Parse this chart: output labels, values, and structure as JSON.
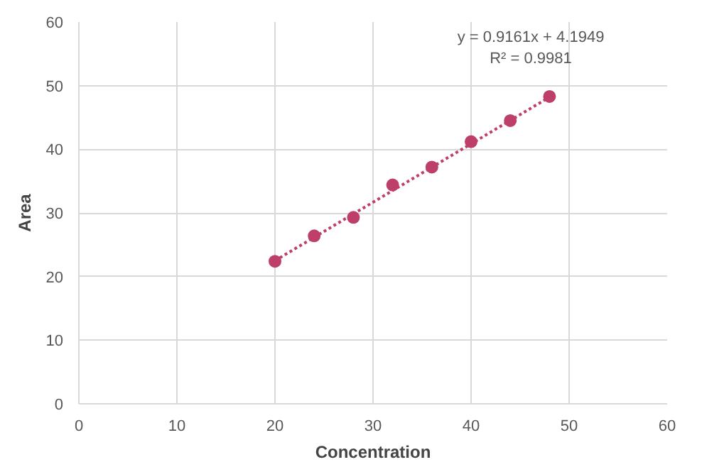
{
  "chart_data": {
    "type": "scatter",
    "xlabel": "Concentration",
    "ylabel": "Area",
    "series": [
      {
        "color": "#be3f6a",
        "marker": "circle",
        "x": [
          20,
          24,
          28,
          32,
          36,
          40,
          44,
          48
        ],
        "values": [
          22.4,
          26.4,
          29.3,
          34.4,
          37.2,
          41.2,
          44.5,
          48.3
        ]
      },
      {
        "type": "line",
        "color": "#be3f6a",
        "line_style": "dotted",
        "x": [
          20,
          48
        ],
        "values": [
          22.5,
          48.2
        ]
      }
    ],
    "annotations": [
      "y = 0.9161x + 4.1949",
      "R² = 0.9981"
    ],
    "xlim": [
      0,
      60
    ],
    "xticks": [
      0,
      10,
      20,
      30,
      40,
      50,
      60
    ],
    "ylim": [
      0,
      60
    ],
    "yticks": [
      0,
      10,
      20,
      30,
      40,
      50,
      60
    ],
    "grid": true
  }
}
